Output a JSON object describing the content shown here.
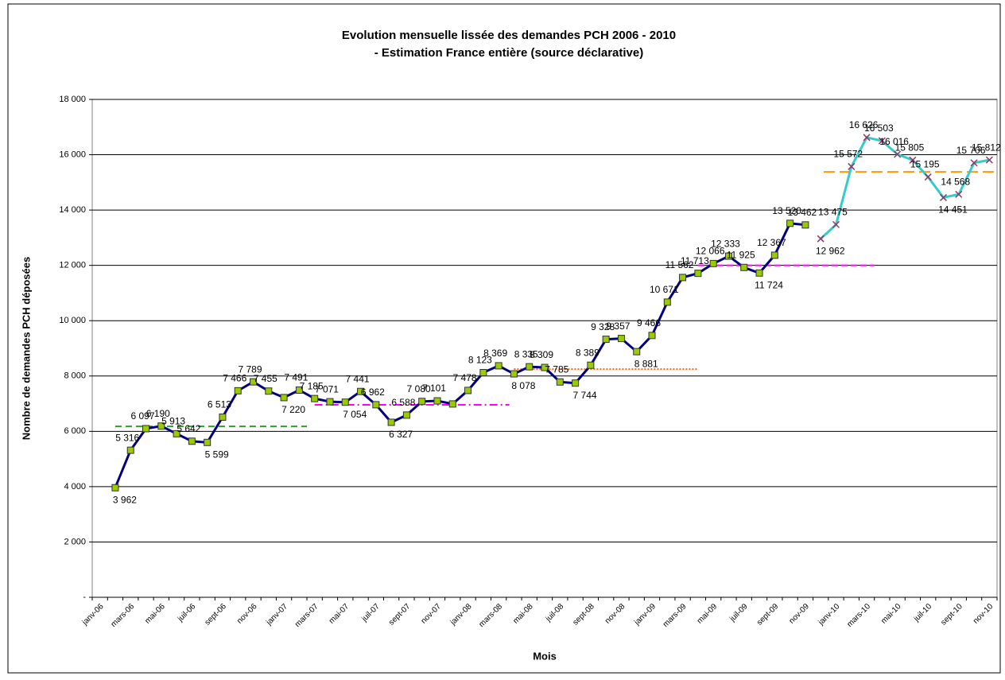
{
  "chart_data": {
    "type": "line",
    "title": [
      "Evolution mensuelle lissée des demandes PCH 2006 - 2010",
      "- Estimation France entière  (source déclarative)"
    ],
    "y_label": "Nombre de demandes PCH déposées",
    "x_label": "Mois",
    "categories": [
      "janv-06",
      null,
      "mars-06",
      null,
      "mai-06",
      null,
      "juil-06",
      null,
      "sept-06",
      null,
      "nov-06",
      null,
      "janv-07",
      null,
      "mars-07",
      null,
      "mai-07",
      null,
      "juil-07",
      null,
      "sept-07",
      null,
      "nov-07",
      null,
      "janv-08",
      null,
      "mars-08",
      null,
      "mai-08",
      null,
      "juil-08",
      null,
      "sept-08",
      null,
      "nov-08",
      null,
      "janv-09",
      null,
      "mars-09",
      null,
      "mai-09",
      null,
      "juil-09",
      null,
      "sept-09",
      null,
      "nov-09",
      null,
      "janv-10",
      null,
      "mars-10",
      null,
      "mai-10",
      null,
      "juil-10",
      null,
      "sept-10",
      null,
      "nov-10"
    ],
    "series": [
      {
        "color": "#000080",
        "marker": "square",
        "marker_color": "#99cc00",
        "values": [
          null,
          3962,
          5316,
          6097,
          6190,
          5913,
          5642,
          5599,
          6513,
          7466,
          7789,
          7455,
          7220,
          7491,
          7185,
          7071,
          7054,
          7441,
          6962,
          6327,
          6588,
          7080,
          7101,
          6990,
          7478,
          8123,
          8369,
          8078,
          8335,
          8309,
          7785,
          7744,
          8389,
          9328,
          9357,
          8881,
          9466,
          10671,
          11562,
          11713,
          12066,
          12333,
          11925,
          11724,
          12367,
          13520,
          13462,
          null,
          null,
          null,
          null,
          null,
          null,
          null,
          null,
          null,
          null,
          null,
          null
        ],
        "value_labels": [
          null,
          "3 962",
          "5 316",
          "6 097",
          "6 190",
          "5 913",
          "5 642",
          "5 599",
          "6 513",
          "7 466",
          "7 789",
          "7 455",
          "7 220",
          "7 491",
          "7 185",
          "7 071",
          "7 054",
          "7 441",
          "6 962",
          "6 327",
          "6 588",
          "7 080",
          "7 101",
          null,
          "7 478",
          "8 123",
          "8 369",
          "8 078",
          "8 335",
          "8 309",
          "7 785",
          "7 744",
          "8 389",
          "9 328",
          "9 357",
          "8 881",
          "9 466",
          "10 671",
          "11 562",
          "11 713",
          "12 066",
          "12 333",
          "11 925",
          "11 724",
          "12 367",
          "13 520",
          "13 462",
          null,
          null,
          null,
          null,
          null,
          null,
          null,
          null,
          null,
          null,
          null,
          null
        ]
      },
      {
        "color": "#33cccc",
        "marker": "x",
        "marker_color": "#993366",
        "values": [
          null,
          null,
          null,
          null,
          null,
          null,
          null,
          null,
          null,
          null,
          null,
          null,
          null,
          null,
          null,
          null,
          null,
          null,
          null,
          null,
          null,
          null,
          null,
          null,
          null,
          null,
          null,
          null,
          null,
          null,
          null,
          null,
          null,
          null,
          null,
          null,
          null,
          null,
          null,
          null,
          null,
          null,
          null,
          null,
          null,
          null,
          null,
          12962,
          13475,
          15572,
          16626,
          16503,
          16016,
          15805,
          15195,
          14451,
          14568,
          15706,
          15812
        ],
        "value_labels": [
          null,
          null,
          null,
          null,
          null,
          null,
          null,
          null,
          null,
          null,
          null,
          null,
          null,
          null,
          null,
          null,
          null,
          null,
          null,
          null,
          null,
          null,
          null,
          null,
          null,
          null,
          null,
          null,
          null,
          null,
          null,
          null,
          null,
          null,
          null,
          null,
          null,
          null,
          null,
          null,
          null,
          null,
          null,
          null,
          null,
          null,
          null,
          "12 962",
          "13 475",
          "15 572",
          "16 626",
          "16 503",
          "16 016",
          "15 805",
          "15 195",
          "14 451",
          "14 568",
          "15 706",
          "15 812"
        ]
      }
    ],
    "reference_lines": [
      {
        "value": 6180,
        "xrange": [
          1,
          13.5
        ],
        "color": "#339933",
        "dash": "8,5"
      },
      {
        "value": 6960,
        "xrange": [
          14,
          26.7
        ],
        "color": "#ff00ff",
        "dash": "10,4,2,4"
      },
      {
        "value": 8250,
        "xrange": [
          27,
          39
        ],
        "color": "#ff6600",
        "dash": "2,2"
      },
      {
        "value": 12000,
        "xrange": [
          39,
          50.5
        ],
        "color": "#ff00ff",
        "dash": "8,4"
      },
      {
        "value": 15380,
        "xrange": [
          47.2,
          58.5
        ],
        "color": "#ff9900",
        "dash": "14,6"
      }
    ],
    "ylim": [
      0,
      18000
    ],
    "yticks": [
      {
        "value": 0,
        "label": "-"
      },
      {
        "value": 2000,
        "label": "2 000"
      },
      {
        "value": 4000,
        "label": "4 000"
      },
      {
        "value": 6000,
        "label": "6 000"
      },
      {
        "value": 8000,
        "label": "8 000"
      },
      {
        "value": 10000,
        "label": "10 000"
      },
      {
        "value": 12000,
        "label": "12 000"
      },
      {
        "value": 14000,
        "label": "14 000"
      },
      {
        "value": 16000,
        "label": "16 000"
      },
      {
        "value": 18000,
        "label": "18 000"
      }
    ],
    "grid": true
  }
}
